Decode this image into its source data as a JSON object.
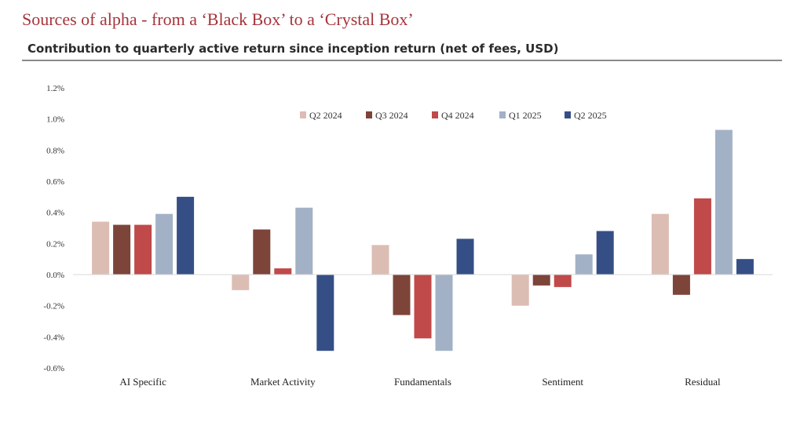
{
  "header": {
    "title": "Sources of alpha - from a ‘Black Box’ to a ‘Crystal Box’",
    "subtitle": "Contribution to quarterly active return since inception return (net of fees, USD)"
  },
  "chart_data": {
    "type": "bar",
    "title": "Contribution to quarterly active return since inception return (net of fees, USD)",
    "xlabel": "",
    "ylabel": "",
    "ylim": [
      -0.6,
      1.2
    ],
    "yticks": [
      -0.6,
      -0.4,
      -0.2,
      0.0,
      0.2,
      0.4,
      0.6,
      0.8,
      1.0,
      1.2
    ],
    "ytick_labels": [
      "-0.6%",
      "-0.4%",
      "-0.2%",
      "0.0%",
      "0.2%",
      "0.4%",
      "0.6%",
      "0.8%",
      "1.0%",
      "1.2%"
    ],
    "grid": false,
    "legend_position": "top-center",
    "categories": [
      "AI Specific",
      "Market Activity",
      "Fundamentals",
      "Sentiment",
      "Residual"
    ],
    "series": [
      {
        "name": "Q2 2024",
        "color": "#dcbdb4",
        "values": [
          0.34,
          -0.1,
          0.19,
          -0.2,
          0.39
        ]
      },
      {
        "name": "Q3 2024",
        "color": "#7d4439",
        "values": [
          0.32,
          0.29,
          -0.26,
          -0.07,
          -0.13
        ]
      },
      {
        "name": "Q4 2024",
        "color": "#c0494a",
        "values": [
          0.32,
          0.04,
          -0.41,
          -0.08,
          0.49
        ]
      },
      {
        "name": "Q1 2025",
        "color": "#a3b1c7",
        "values": [
          0.39,
          0.43,
          -0.49,
          0.13,
          0.93
        ]
      },
      {
        "name": "Q2 2025",
        "color": "#354f86",
        "values": [
          0.5,
          -0.49,
          0.23,
          0.28,
          0.1
        ]
      }
    ]
  }
}
